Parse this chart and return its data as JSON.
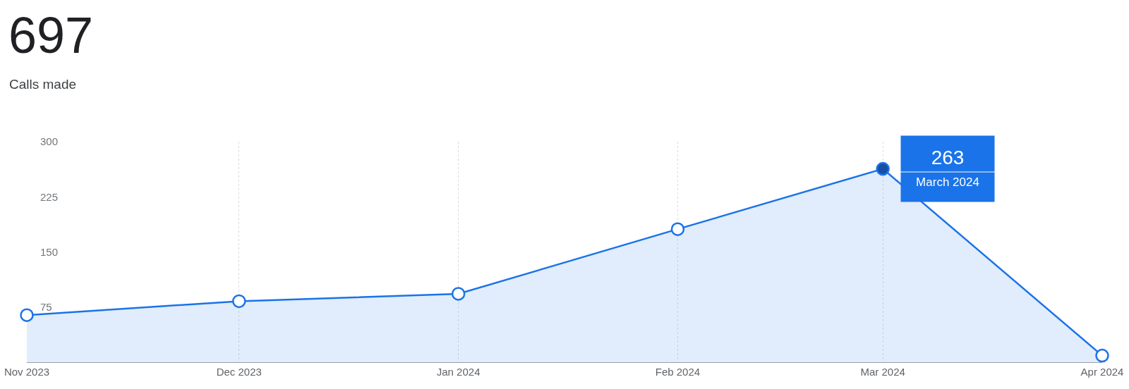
{
  "chart_data": {
    "type": "area",
    "title": "697",
    "subtitle": "Calls made",
    "x": [
      "2023-11",
      "2023-12",
      "2024-01",
      "2024-02",
      "2024-03",
      "2024-04"
    ],
    "series": [
      {
        "color": "#1a73e8",
        "colors": [
          "#ffffff",
          "#ffffff",
          "#ffffff",
          "#ffffff",
          "#174ea6",
          "#ffffff"
        ],
        "values": [
          64,
          83,
          93,
          181,
          263,
          9
        ]
      }
    ],
    "xlim": [
      "2023-11",
      "2024-04"
    ],
    "xticks": [
      {
        "value": "2023-11",
        "label": "Nov 2023"
      },
      {
        "value": "2023-12",
        "label": "Dec 2023"
      },
      {
        "value": "2024-01",
        "label": "Jan 2024"
      },
      {
        "value": "2024-02",
        "label": "Feb 2024"
      },
      {
        "value": "2024-03",
        "label": "Mar 2024"
      },
      {
        "value": "2024-04",
        "label": "Apr 2024"
      }
    ],
    "ylim": [
      0,
      300
    ],
    "yticks": [
      75,
      150,
      225,
      300
    ],
    "grid": "x",
    "legend": false,
    "marker": "circle",
    "line_style": "solid",
    "annotations": [
      {
        "text": "263",
        "x": "2024-03",
        "y": 263
      },
      {
        "text": "March 2024",
        "x": "2024-03",
        "y": 263
      }
    ]
  }
}
